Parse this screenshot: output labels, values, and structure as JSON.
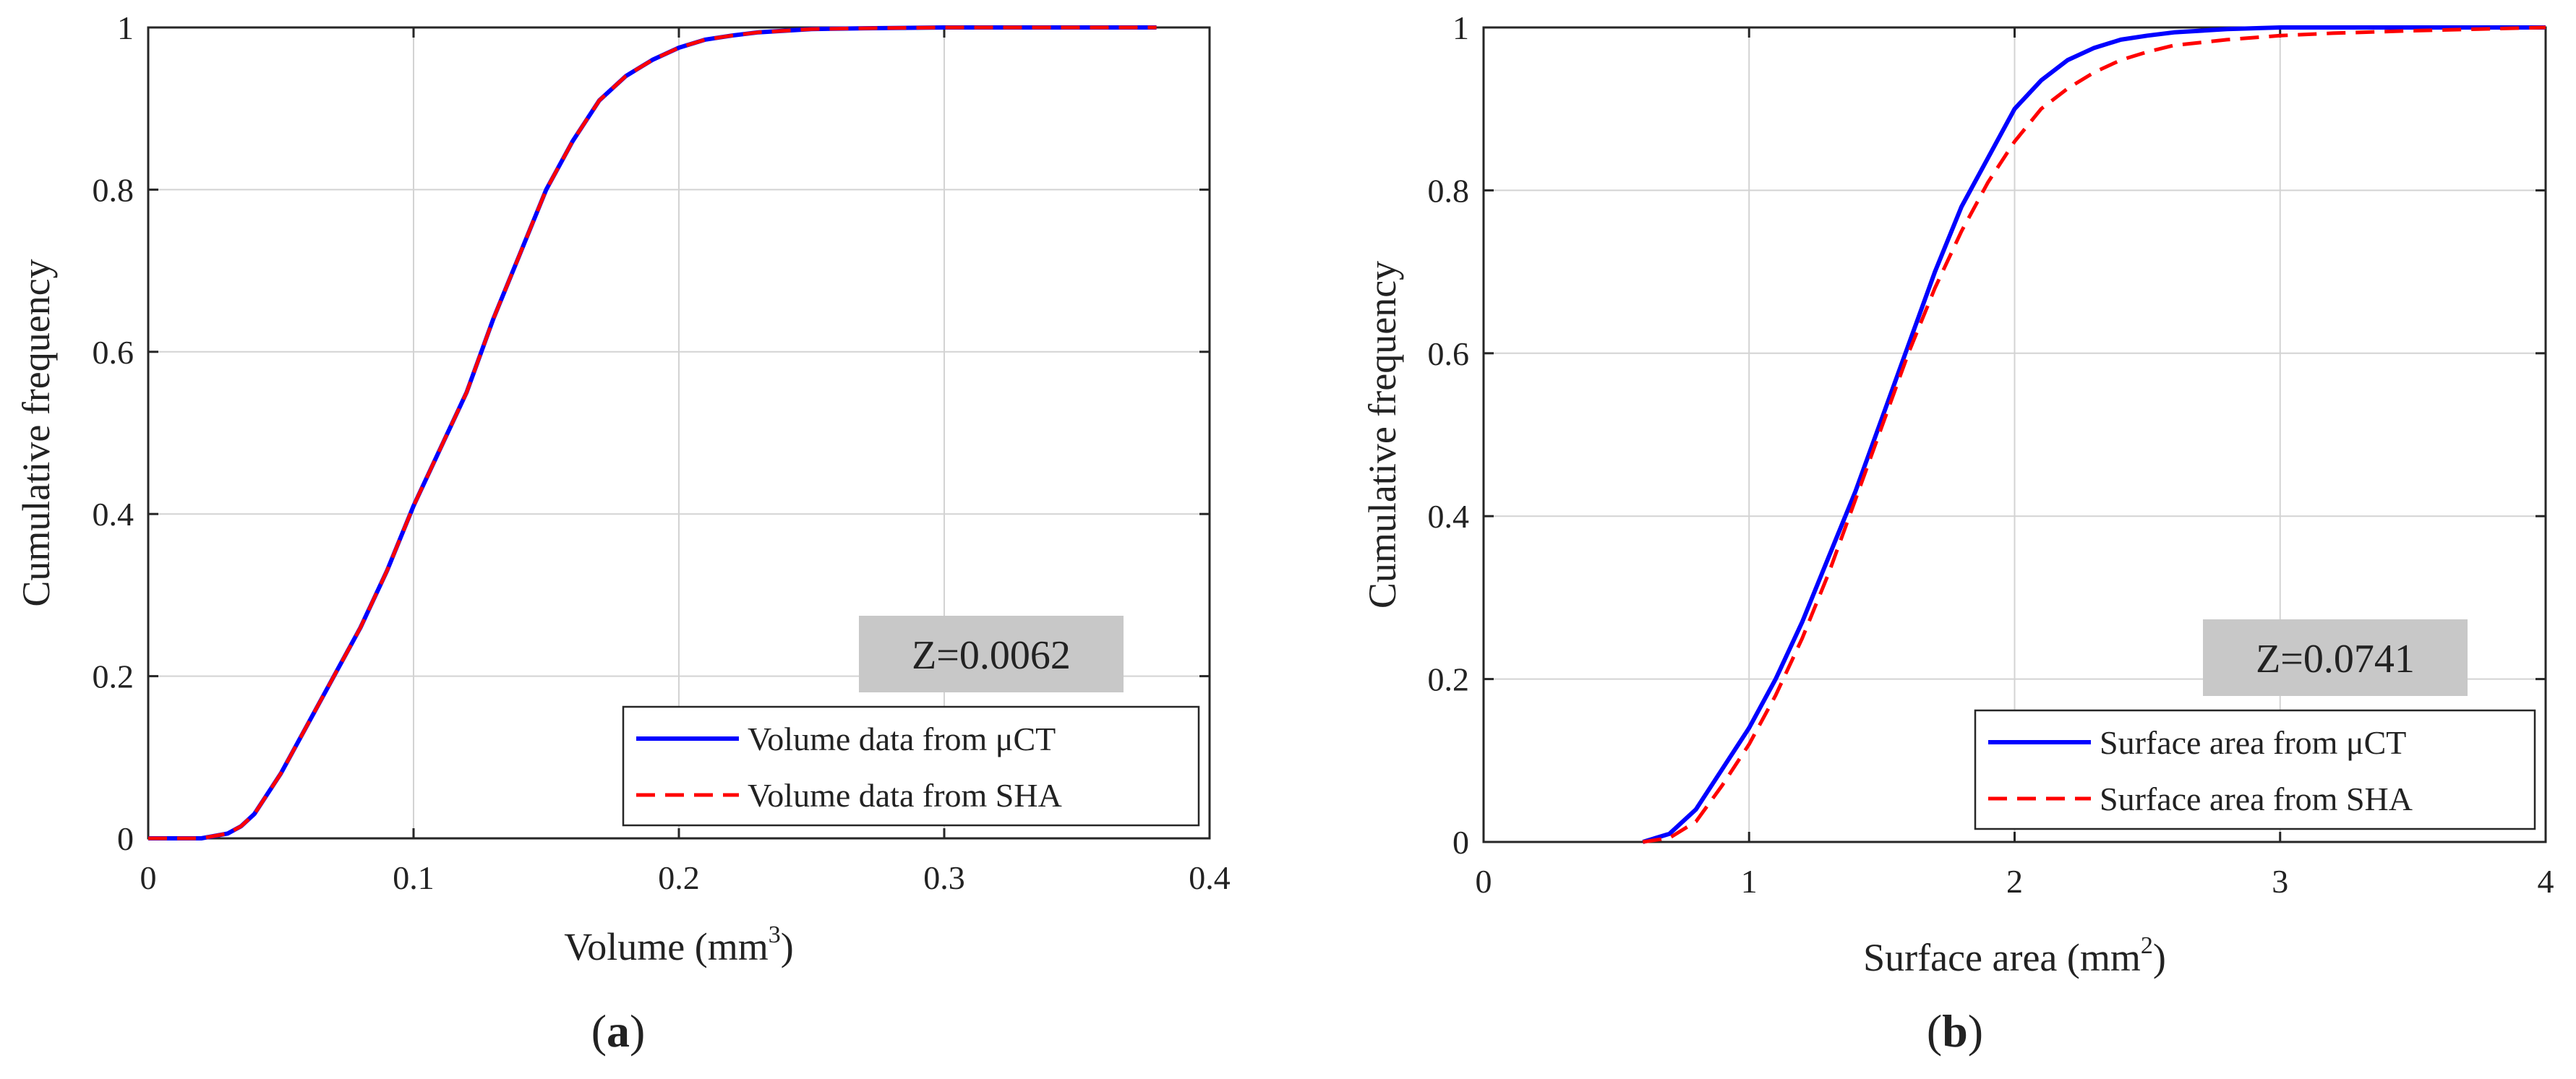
{
  "colors": {
    "series1": "#0000ff",
    "series2": "#ff0000",
    "grid": "#d3d3d3",
    "axis": "#262626",
    "zbox": "#c8c8c8"
  },
  "chart_data": [
    {
      "type": "line",
      "caption_open": "(",
      "caption_letter": "a",
      "caption_close": ")",
      "xlabel_main": "Volume (mm",
      "xlabel_sup": "3",
      "xlabel_close": ")",
      "ylabel": "Cumulative frequency",
      "xlim": [
        0,
        0.4
      ],
      "ylim": [
        0,
        1
      ],
      "xticks": [
        0,
        0.1,
        0.2,
        0.3,
        0.4
      ],
      "xtick_labels": [
        "0",
        "0.1",
        "0.2",
        "0.3",
        "0.4"
      ],
      "yticks": [
        0,
        0.2,
        0.4,
        0.6,
        0.8,
        1
      ],
      "ytick_labels": [
        "0",
        "0.2",
        "0.4",
        "0.6",
        "0.8",
        "1"
      ],
      "grid": true,
      "annotation": "Z=0.0062",
      "legend_position": "bottom-right",
      "series": [
        {
          "name": "Volume data from μCT",
          "style": "solid",
          "x": [
            0.0,
            0.02,
            0.03,
            0.035,
            0.04,
            0.05,
            0.06,
            0.07,
            0.08,
            0.09,
            0.1,
            0.11,
            0.12,
            0.13,
            0.14,
            0.15,
            0.16,
            0.17,
            0.18,
            0.19,
            0.2,
            0.21,
            0.22,
            0.23,
            0.24,
            0.25,
            0.27,
            0.3,
            0.34,
            0.38
          ],
          "y": [
            0.0,
            0.0,
            0.006,
            0.015,
            0.03,
            0.08,
            0.14,
            0.2,
            0.26,
            0.33,
            0.41,
            0.48,
            0.55,
            0.64,
            0.72,
            0.8,
            0.86,
            0.91,
            0.94,
            0.96,
            0.975,
            0.985,
            0.99,
            0.994,
            0.996,
            0.998,
            0.999,
            1.0,
            1.0,
            1.0
          ]
        },
        {
          "name": "Volume data from SHA",
          "style": "dashed",
          "x": [
            0.0,
            0.02,
            0.03,
            0.035,
            0.04,
            0.05,
            0.06,
            0.07,
            0.08,
            0.09,
            0.1,
            0.11,
            0.12,
            0.13,
            0.14,
            0.15,
            0.16,
            0.17,
            0.18,
            0.19,
            0.2,
            0.21,
            0.22,
            0.23,
            0.24,
            0.25,
            0.27,
            0.3,
            0.34,
            0.38
          ],
          "y": [
            0.0,
            0.0,
            0.006,
            0.015,
            0.03,
            0.08,
            0.14,
            0.2,
            0.26,
            0.33,
            0.41,
            0.48,
            0.55,
            0.64,
            0.72,
            0.8,
            0.86,
            0.91,
            0.94,
            0.96,
            0.975,
            0.985,
            0.99,
            0.994,
            0.996,
            0.998,
            0.999,
            1.0,
            1.0,
            1.0
          ]
        }
      ]
    },
    {
      "type": "line",
      "caption_open": "(",
      "caption_letter": "b",
      "caption_close": ")",
      "xlabel_main": "Surface area (mm",
      "xlabel_sup": "2",
      "xlabel_close": ")",
      "ylabel": "Cumulative frequency",
      "xlim": [
        0,
        4
      ],
      "ylim": [
        0,
        1
      ],
      "xticks": [
        0,
        1,
        2,
        3,
        4
      ],
      "xtick_labels": [
        "0",
        "1",
        "2",
        "3",
        "4"
      ],
      "yticks": [
        0,
        0.2,
        0.4,
        0.6,
        0.8,
        1
      ],
      "ytick_labels": [
        "0",
        "0.2",
        "0.4",
        "0.6",
        "0.8",
        "1"
      ],
      "grid": true,
      "annotation": "Z=0.0741",
      "legend_position": "bottom-right",
      "series": [
        {
          "name": "Surface area from μCT",
          "style": "solid",
          "x": [
            0.6,
            0.7,
            0.8,
            0.9,
            1.0,
            1.1,
            1.2,
            1.3,
            1.4,
            1.5,
            1.6,
            1.7,
            1.8,
            1.9,
            2.0,
            2.1,
            2.2,
            2.3,
            2.4,
            2.5,
            2.6,
            2.8,
            3.0,
            3.2,
            3.5,
            4.0
          ],
          "y": [
            0.0,
            0.01,
            0.04,
            0.09,
            0.14,
            0.2,
            0.27,
            0.35,
            0.43,
            0.52,
            0.61,
            0.7,
            0.78,
            0.84,
            0.9,
            0.935,
            0.96,
            0.975,
            0.985,
            0.99,
            0.994,
            0.998,
            1.0,
            1.0,
            1.0,
            1.0
          ]
        },
        {
          "name": "Surface area from SHA",
          "style": "dashed",
          "x": [
            0.6,
            0.7,
            0.8,
            0.9,
            1.0,
            1.1,
            1.2,
            1.3,
            1.4,
            1.5,
            1.6,
            1.7,
            1.8,
            1.9,
            2.0,
            2.1,
            2.2,
            2.3,
            2.4,
            2.5,
            2.6,
            2.8,
            3.0,
            3.2,
            3.5,
            4.0
          ],
          "y": [
            0.0,
            0.005,
            0.025,
            0.07,
            0.12,
            0.18,
            0.25,
            0.33,
            0.42,
            0.51,
            0.6,
            0.68,
            0.75,
            0.81,
            0.86,
            0.9,
            0.925,
            0.945,
            0.96,
            0.97,
            0.978,
            0.985,
            0.99,
            0.993,
            0.996,
            1.0
          ]
        }
      ]
    }
  ]
}
